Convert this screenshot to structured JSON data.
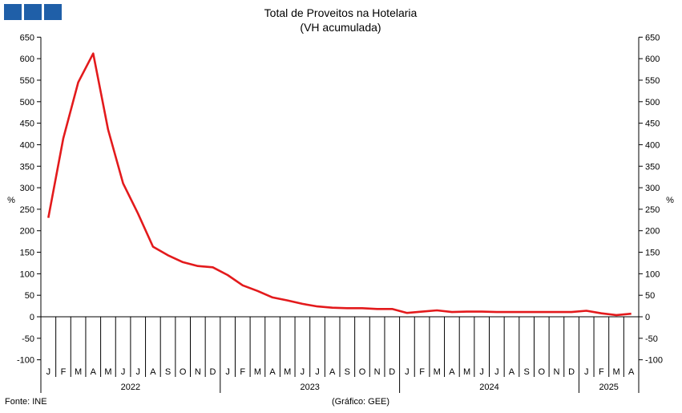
{
  "chart_data": {
    "type": "line",
    "title": "Total de Proveitos na Hotelaria",
    "subtitle": "(VH acumulada)",
    "ylabel_left": "%",
    "ylabel_right": "%",
    "ylim": [
      -100,
      650
    ],
    "yticks": [
      -100,
      -50,
      0,
      50,
      100,
      150,
      200,
      250,
      300,
      350,
      400,
      450,
      500,
      550,
      600,
      650
    ],
    "grid": false,
    "months": [
      "J",
      "F",
      "M",
      "A",
      "M",
      "J",
      "J",
      "A",
      "S",
      "O",
      "N",
      "D",
      "J",
      "F",
      "M",
      "A",
      "M",
      "J",
      "J",
      "A",
      "S",
      "O",
      "N",
      "D",
      "J",
      "F",
      "M",
      "A",
      "M",
      "J",
      "J",
      "A",
      "S",
      "O",
      "N",
      "D",
      "J",
      "F",
      "M",
      "A"
    ],
    "years": [
      {
        "label": "2022",
        "start": 0,
        "count": 12
      },
      {
        "label": "2023",
        "start": 12,
        "count": 12
      },
      {
        "label": "2024",
        "start": 24,
        "count": 12
      },
      {
        "label": "2025",
        "start": 36,
        "count": 4
      }
    ],
    "series": [
      {
        "color": "#e31a1c",
        "values": [
          230,
          415,
          545,
          612,
          435,
          310,
          240,
          163,
          143,
          127,
          118,
          115,
          97,
          73,
          60,
          45,
          38,
          30,
          24,
          21,
          20,
          20,
          18,
          18,
          9,
          12,
          15,
          11,
          12,
          12,
          11,
          11,
          11,
          11,
          11,
          11,
          14,
          8,
          4,
          7
        ]
      }
    ]
  },
  "footer": {
    "source": "Fonte: INE",
    "credit": "(Gráfico: GEE)"
  },
  "colors": {
    "logo": "#1f5fa8",
    "line": "#e31a1c",
    "axis": "#000000"
  }
}
